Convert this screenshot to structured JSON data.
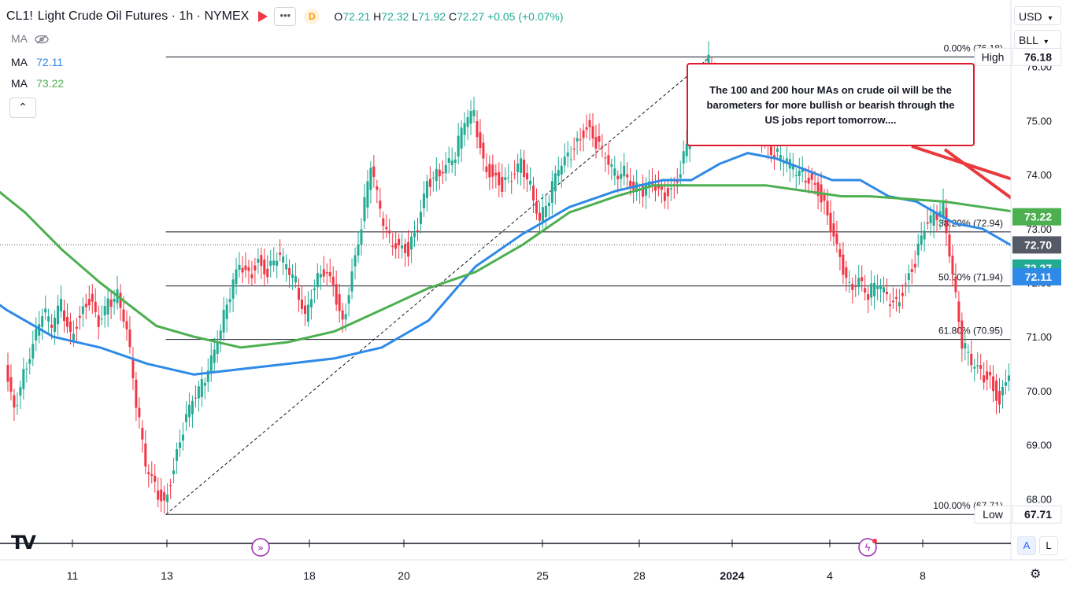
{
  "header": {
    "symbol": "CL1!",
    "title": "Light Crude Oil Futures · 1h · NYMEX",
    "badge": "D",
    "ohlc": {
      "o_label": "O",
      "o": "72.21",
      "h_label": "H",
      "h": "72.32",
      "l_label": "L",
      "l": "71.92",
      "c_label": "C",
      "c": "72.27",
      "change": "+0.05 (+0.07%)"
    },
    "more_icon": "more-dots-icon",
    "flag_icon": "flag-icon"
  },
  "indicators": [
    {
      "label": "MA",
      "value": "",
      "hidden": true
    },
    {
      "label": "MA",
      "value": "72.11",
      "color": "#2e8ae6"
    },
    {
      "label": "MA",
      "value": "73.22",
      "color": "#4caf50"
    }
  ],
  "currency": {
    "ccy": "USD",
    "unit": "BLL"
  },
  "annotation": "The 100 and 200 hour MAs on crude oil will be the barometers for more bullish or bearish through the US jobs report tomorrow....",
  "fib_labels": [
    {
      "text": "0.00% (76.18)",
      "price": 76.18
    },
    {
      "text": "38.20% (72.94)",
      "price": 72.94
    },
    {
      "text": "50.00% (71.94)",
      "price": 71.94
    },
    {
      "text": "61.80% (70.95)",
      "price": 70.95
    },
    {
      "text": "100.00% (67.71)",
      "price": 67.71
    }
  ],
  "price_tags": [
    {
      "text": "High",
      "value": "76.18",
      "kind": "high"
    },
    {
      "text": "",
      "value": "73.22",
      "kind": "ma200"
    },
    {
      "text": "",
      "value": "72.70",
      "kind": "prev"
    },
    {
      "text": "",
      "value": "72.27",
      "kind": "last"
    },
    {
      "text": "",
      "value": "72.11",
      "kind": "ma100"
    },
    {
      "text": "Low",
      "value": "67.71",
      "kind": "low"
    }
  ],
  "bottom": {
    "a_label": "A",
    "l_label": "L",
    "gear_icon": "gear-icon",
    "logo": "TV"
  },
  "colors": {
    "up": "#22ab94",
    "down": "#f23645",
    "ma100": "#2e8ae6",
    "ma200": "#4caf50",
    "highlight": "#f0f532",
    "arrow": "#e8393d"
  },
  "chart_data": {
    "type": "line",
    "symbol": "CL1!",
    "timeframe": "1h",
    "ylim": [
      67.3,
      76.6
    ],
    "y_ticks": [
      68.0,
      69.0,
      70.0,
      71.0,
      72.0,
      73.0,
      74.0,
      75.0,
      76.0
    ],
    "x_ticks": [
      "11",
      "13",
      "18",
      "20",
      "25",
      "28",
      "2024",
      "4",
      "8"
    ],
    "grid": false,
    "price": [
      [
        10.0,
        70.4
      ],
      [
        10.2,
        69.6
      ],
      [
        10.4,
        70.3
      ],
      [
        10.6,
        70.9
      ],
      [
        10.8,
        71.5
      ],
      [
        11.0,
        71.2
      ],
      [
        11.2,
        71.6
      ],
      [
        11.4,
        71.0
      ],
      [
        11.6,
        71.4
      ],
      [
        11.8,
        71.7
      ],
      [
        12.0,
        71.2
      ],
      [
        12.2,
        71.6
      ],
      [
        12.4,
        71.8
      ],
      [
        12.6,
        71.2
      ],
      [
        12.8,
        69.8
      ],
      [
        13.0,
        68.6
      ],
      [
        13.2,
        68.2
      ],
      [
        13.4,
        67.9
      ],
      [
        13.6,
        68.6
      ],
      [
        13.8,
        69.3
      ],
      [
        14.0,
        69.8
      ],
      [
        14.2,
        70.1
      ],
      [
        14.4,
        70.6
      ],
      [
        14.6,
        71.2
      ],
      [
        14.8,
        71.8
      ],
      [
        15.0,
        72.3
      ],
      [
        15.2,
        72.1
      ],
      [
        15.4,
        72.4
      ],
      [
        15.6,
        72.2
      ],
      [
        15.8,
        72.5
      ],
      [
        16.0,
        72.3
      ],
      [
        16.2,
        72.0
      ],
      [
        16.4,
        71.4
      ],
      [
        16.6,
        72.0
      ],
      [
        16.8,
        72.2
      ],
      [
        17.0,
        71.9
      ],
      [
        17.2,
        71.2
      ],
      [
        17.4,
        72.2
      ],
      [
        17.6,
        73.1
      ],
      [
        17.8,
        74.2
      ],
      [
        18.0,
        73.3
      ],
      [
        18.2,
        72.8
      ],
      [
        18.4,
        72.7
      ],
      [
        18.6,
        72.6
      ],
      [
        18.8,
        73.0
      ],
      [
        19.0,
        73.8
      ],
      [
        19.2,
        74.0
      ],
      [
        19.4,
        74.2
      ],
      [
        19.6,
        74.4
      ],
      [
        19.8,
        75.0
      ],
      [
        20.0,
        75.1
      ],
      [
        20.2,
        74.2
      ],
      [
        20.4,
        74.0
      ],
      [
        20.6,
        73.8
      ],
      [
        20.8,
        73.9
      ],
      [
        21.0,
        74.2
      ],
      [
        21.2,
        73.8
      ],
      [
        21.4,
        73.2
      ],
      [
        21.6,
        73.6
      ],
      [
        21.8,
        74.1
      ],
      [
        22.0,
        74.3
      ],
      [
        22.2,
        74.6
      ],
      [
        22.4,
        74.9
      ],
      [
        22.6,
        74.6
      ],
      [
        22.8,
        74.3
      ],
      [
        23.0,
        74.0
      ],
      [
        23.2,
        74.1
      ],
      [
        23.4,
        73.8
      ],
      [
        23.6,
        73.7
      ],
      [
        23.8,
        73.8
      ],
      [
        24.0,
        73.6
      ],
      [
        24.2,
        73.7
      ],
      [
        24.4,
        74.1
      ],
      [
        24.6,
        74.8
      ],
      [
        24.8,
        75.5
      ],
      [
        25.0,
        76.1
      ],
      [
        25.2,
        75.6
      ],
      [
        25.4,
        75.2
      ],
      [
        25.6,
        75.6
      ],
      [
        25.8,
        75.2
      ],
      [
        26.0,
        75.0
      ],
      [
        26.2,
        74.6
      ],
      [
        26.4,
        74.4
      ],
      [
        26.6,
        74.3
      ],
      [
        26.8,
        74.1
      ],
      [
        27.0,
        74.0
      ],
      [
        27.2,
        73.9
      ],
      [
        27.4,
        73.6
      ],
      [
        27.6,
        73.0
      ],
      [
        27.8,
        72.4
      ],
      [
        28.0,
        71.9
      ],
      [
        28.2,
        72.1
      ],
      [
        28.4,
        71.8
      ],
      [
        28.6,
        72.0
      ],
      [
        28.8,
        71.7
      ],
      [
        29.0,
        71.6
      ],
      [
        29.2,
        72.0
      ],
      [
        29.4,
        72.4
      ],
      [
        29.6,
        73.0
      ],
      [
        29.8,
        73.2
      ],
      [
        30.0,
        73.4
      ],
      [
        30.2,
        72.2
      ],
      [
        30.4,
        70.9
      ],
      [
        30.6,
        70.5
      ],
      [
        30.8,
        70.3
      ],
      [
        31.0,
        70.2
      ],
      [
        31.2,
        69.8
      ],
      [
        31.4,
        70.4
      ],
      [
        31.6,
        71.8
      ],
      [
        31.8,
        72.6
      ],
      [
        32.0,
        72.9
      ],
      [
        32.2,
        73.1
      ],
      [
        32.4,
        73.3
      ],
      [
        32.6,
        73.6
      ],
      [
        32.8,
        73.3
      ],
      [
        33.0,
        72.7
      ],
      [
        33.2,
        71.3
      ],
      [
        33.4,
        71.6
      ],
      [
        33.6,
        72.27
      ]
    ],
    "series": [
      {
        "name": "MA",
        "label_value": "72.11",
        "period_hours": 100,
        "values": [
          [
            8.4,
            72.8
          ],
          [
            9.2,
            72.0
          ],
          [
            10.0,
            71.5
          ],
          [
            11.0,
            71.0
          ],
          [
            12.0,
            70.8
          ],
          [
            13.0,
            70.5
          ],
          [
            14.0,
            70.3
          ],
          [
            15.0,
            70.4
          ],
          [
            16.0,
            70.5
          ],
          [
            17.0,
            70.6
          ],
          [
            18.0,
            70.8
          ],
          [
            19.0,
            71.3
          ],
          [
            20.0,
            72.3
          ],
          [
            21.0,
            72.9
          ],
          [
            22.0,
            73.4
          ],
          [
            23.0,
            73.7
          ],
          [
            24.0,
            73.9
          ],
          [
            24.6,
            73.9
          ],
          [
            25.2,
            74.2
          ],
          [
            25.8,
            74.4
          ],
          [
            26.4,
            74.3
          ],
          [
            27.0,
            74.1
          ],
          [
            27.6,
            73.9
          ],
          [
            28.2,
            73.9
          ],
          [
            28.8,
            73.6
          ],
          [
            29.4,
            73.5
          ],
          [
            30.2,
            73.1
          ],
          [
            30.8,
            73.0
          ],
          [
            31.4,
            72.7
          ],
          [
            32.0,
            72.3
          ],
          [
            32.6,
            72.2
          ],
          [
            33.2,
            72.15
          ],
          [
            33.6,
            72.11
          ]
        ]
      },
      {
        "name": "MA",
        "label_value": "73.22",
        "period_hours": 200,
        "values": [
          [
            8.4,
            74.6
          ],
          [
            9.4,
            74.0
          ],
          [
            10.4,
            73.3
          ],
          [
            11.2,
            72.6
          ],
          [
            12.0,
            72.0
          ],
          [
            12.6,
            71.6
          ],
          [
            13.2,
            71.2
          ],
          [
            14.0,
            71.0
          ],
          [
            15.0,
            70.8
          ],
          [
            16.0,
            70.9
          ],
          [
            17.0,
            71.1
          ],
          [
            18.0,
            71.5
          ],
          [
            19.0,
            71.9
          ],
          [
            20.0,
            72.2
          ],
          [
            21.0,
            72.7
          ],
          [
            22.0,
            73.3
          ],
          [
            23.0,
            73.6
          ],
          [
            23.8,
            73.8
          ],
          [
            24.6,
            73.8
          ],
          [
            25.4,
            73.8
          ],
          [
            26.2,
            73.8
          ],
          [
            27.0,
            73.7
          ],
          [
            27.8,
            73.6
          ],
          [
            28.4,
            73.6
          ],
          [
            29.2,
            73.55
          ],
          [
            30.0,
            73.5
          ],
          [
            30.8,
            73.4
          ],
          [
            31.6,
            73.3
          ],
          [
            32.4,
            73.25
          ],
          [
            33.2,
            73.23
          ],
          [
            33.6,
            73.22
          ]
        ]
      }
    ]
  }
}
